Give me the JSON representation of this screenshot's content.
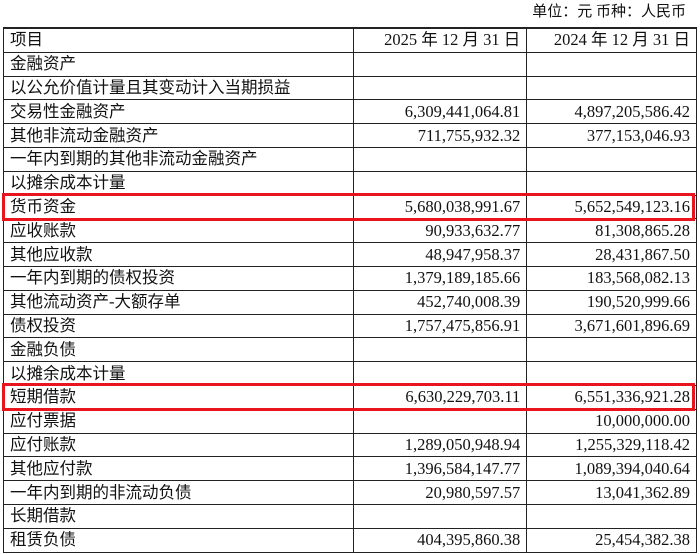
{
  "unit_label": "单位：元 币种：人民币",
  "header": {
    "item": "项目",
    "col1": "2025 年 12 月 31 日",
    "col2": "2024 年 12 月 31 日"
  },
  "rows": [
    {
      "label": "金融资产",
      "v1": "",
      "v2": ""
    },
    {
      "label": "以公允价值计量且其变动计入当期损益",
      "v1": "",
      "v2": ""
    },
    {
      "label": "交易性金融资产",
      "v1": "6,309,441,064.81",
      "v2": "4,897,205,586.42"
    },
    {
      "label": "其他非流动金融资产",
      "v1": "711,755,932.32",
      "v2": "377,153,046.93"
    },
    {
      "label": "一年内到期的其他非流动金融资产",
      "v1": "",
      "v2": ""
    },
    {
      "label": "以摊余成本计量",
      "v1": "",
      "v2": ""
    },
    {
      "label": "货币资金",
      "v1": "5,680,038,991.67",
      "v2": "5,652,549,123.16"
    },
    {
      "label": "应收账款",
      "v1": "90,933,632.77",
      "v2": "81,308,865.28"
    },
    {
      "label": "其他应收款",
      "v1": "48,947,958.37",
      "v2": "28,431,867.50"
    },
    {
      "label": "一年内到期的债权投资",
      "v1": "1,379,189,185.66",
      "v2": "183,568,082.13"
    },
    {
      "label": "其他流动资产-大额存单",
      "v1": "452,740,008.39",
      "v2": "190,520,999.66"
    },
    {
      "label": "债权投资",
      "v1": "1,757,475,856.91",
      "v2": "3,671,601,896.69"
    },
    {
      "label": "金融负债",
      "v1": "",
      "v2": ""
    },
    {
      "label": "以摊余成本计量",
      "v1": "",
      "v2": ""
    },
    {
      "label": "短期借款",
      "v1": "6,630,229,703.11",
      "v2": "6,551,336,921.28"
    },
    {
      "label": "应付票据",
      "v1": "",
      "v2": "10,000,000.00"
    },
    {
      "label": "应付账款",
      "v1": "1,289,050,948.94",
      "v2": "1,255,329,118.42"
    },
    {
      "label": "其他应付款",
      "v1": "1,396,584,147.77",
      "v2": "1,089,394,040.64"
    },
    {
      "label": "一年内到期的非流动负债",
      "v1": "20,980,597.57",
      "v2": "13,041,362.89"
    },
    {
      "label": "长期借款",
      "v1": "",
      "v2": ""
    },
    {
      "label": "租赁负债",
      "v1": "404,395,860.38",
      "v2": "25,454,382.38"
    }
  ],
  "highlight_color": "#e8141e"
}
